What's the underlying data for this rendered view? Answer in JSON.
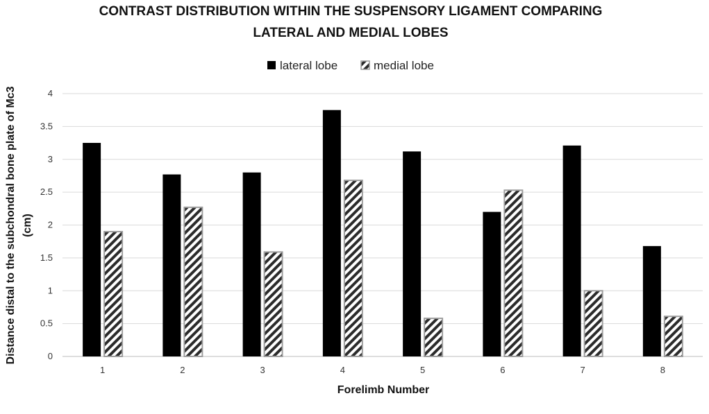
{
  "chart_data": {
    "type": "bar",
    "title_lines": [
      "CONTRAST DISTRIBUTION WITHIN THE SUSPENSORY LIGAMENT COMPARING",
      "LATERAL AND MEDIAL LOBES"
    ],
    "xlabel": "Forelimb Number",
    "ylabel_lines": [
      "Distance distal to the subchondral  bone  plate of Mc3",
      "(cm)"
    ],
    "categories": [
      "1",
      "2",
      "3",
      "4",
      "5",
      "6",
      "7",
      "8"
    ],
    "yticks": [
      "0",
      "0.5",
      "1",
      "1.5",
      "2",
      "2.5",
      "3",
      "3.5",
      "4"
    ],
    "ylim": [
      0,
      4
    ],
    "grid": true,
    "legend_position": "top-center",
    "series": [
      {
        "name": "lateral lobe",
        "fill": "solid-black",
        "color": "#000000",
        "values": [
          3.25,
          2.77,
          2.8,
          3.75,
          3.12,
          2.2,
          3.21,
          1.68
        ]
      },
      {
        "name": "medial lobe",
        "fill": "diagonal-hatch",
        "color": "#333333",
        "values": [
          1.9,
          2.27,
          1.59,
          2.68,
          0.58,
          2.53,
          1.0,
          0.61
        ]
      }
    ]
  }
}
